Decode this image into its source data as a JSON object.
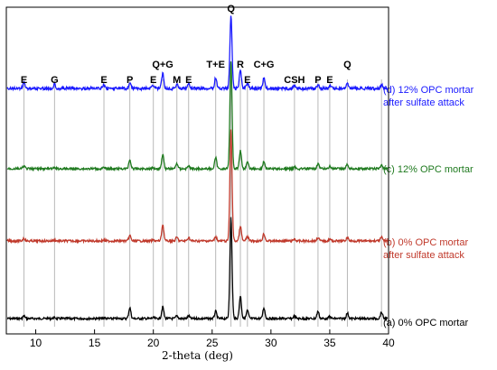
{
  "chart_data": {
    "type": "line",
    "xlabel": "2-theta (deg)",
    "ylabel": "",
    "xlim": [
      7.5,
      40
    ],
    "x_ticks": [
      "10",
      "15",
      "20",
      "25",
      "30",
      "35",
      "40"
    ],
    "x_tick_values": [
      10,
      15,
      20,
      25,
      30,
      35,
      40
    ],
    "grid": false,
    "reference_lines_x": [
      9.0,
      11.6,
      15.8,
      18.0,
      20.0,
      20.8,
      22.0,
      23.0,
      25.3,
      26.6,
      27.4,
      28.0,
      29.4,
      32.0,
      34.0,
      35.0,
      36.5,
      39.4
    ],
    "peak_labels": [
      {
        "text": "E",
        "x": 9.0,
        "row": 2
      },
      {
        "text": "G",
        "x": 11.6,
        "row": 2
      },
      {
        "text": "E",
        "x": 15.8,
        "row": 2
      },
      {
        "text": "P",
        "x": 18.0,
        "row": 2
      },
      {
        "text": "E",
        "x": 20.0,
        "row": 2
      },
      {
        "text": "Q+G",
        "x": 20.8,
        "row": 1
      },
      {
        "text": "M",
        "x": 22.0,
        "row": 2
      },
      {
        "text": "E",
        "x": 23.0,
        "row": 2
      },
      {
        "text": "T+E",
        "x": 25.3,
        "row": 1
      },
      {
        "text": "Q",
        "x": 26.6,
        "row": 0
      },
      {
        "text": "R",
        "x": 27.4,
        "row": 1
      },
      {
        "text": "E",
        "x": 28.0,
        "row": 2
      },
      {
        "text": "C+G",
        "x": 29.4,
        "row": 1
      },
      {
        "text": "CSH",
        "x": 32.0,
        "row": 2
      },
      {
        "text": "P",
        "x": 34.0,
        "row": 2
      },
      {
        "text": "E",
        "x": 35.0,
        "row": 2
      },
      {
        "text": "Q",
        "x": 36.5,
        "row": 1
      }
    ],
    "peaks_x": [
      9.0,
      11.6,
      15.8,
      18.0,
      20.0,
      20.8,
      22.0,
      23.0,
      25.3,
      26.6,
      27.4,
      28.0,
      29.4,
      32.0,
      34.0,
      35.0,
      36.5,
      39.4
    ],
    "series": [
      {
        "name": "(a) 0% OPC mortar",
        "label_lines": [
          "(a) 0% OPC mortar"
        ],
        "color": "#000000",
        "baseline": 353,
        "noise": 1.2,
        "peak_heights": [
          3,
          1,
          1,
          12,
          1,
          13,
          3,
          3,
          8,
          112,
          25,
          9,
          12,
          3,
          8,
          2,
          6,
          7
        ]
      },
      {
        "name": "(b) 0% OPC mortar after sulfate attack",
        "label_lines": [
          "(b) 0% OPC mortar",
          "after sulfate attack"
        ],
        "color": "#c0392b",
        "baseline": 267,
        "noise": 1.2,
        "peak_heights": [
          3,
          1,
          1,
          6,
          1,
          18,
          4,
          4,
          5,
          123,
          16,
          5,
          8,
          2,
          4,
          2,
          4,
          4
        ]
      },
      {
        "name": "(c) 12% OPC mortar",
        "label_lines": [
          "(c) 12% OPC mortar"
        ],
        "color": "#1f7a1f",
        "baseline": 187,
        "noise": 1.2,
        "peak_heights": [
          3,
          1,
          1,
          10,
          1,
          16,
          6,
          3,
          12,
          120,
          20,
          7,
          8,
          2,
          6,
          3,
          5,
          4
        ]
      },
      {
        "name": "(d) 12% OPC mortar after sulfate attack",
        "label_lines": [
          "(d) 12% OPC mortar",
          "after sulfate attack"
        ],
        "color": "#1a1aff",
        "baseline": 98,
        "noise": 1.6,
        "peak_heights": [
          7,
          5,
          4,
          6,
          4,
          17,
          5,
          5,
          12,
          80,
          20,
          6,
          11,
          3,
          4,
          3,
          5,
          4
        ]
      }
    ]
  }
}
